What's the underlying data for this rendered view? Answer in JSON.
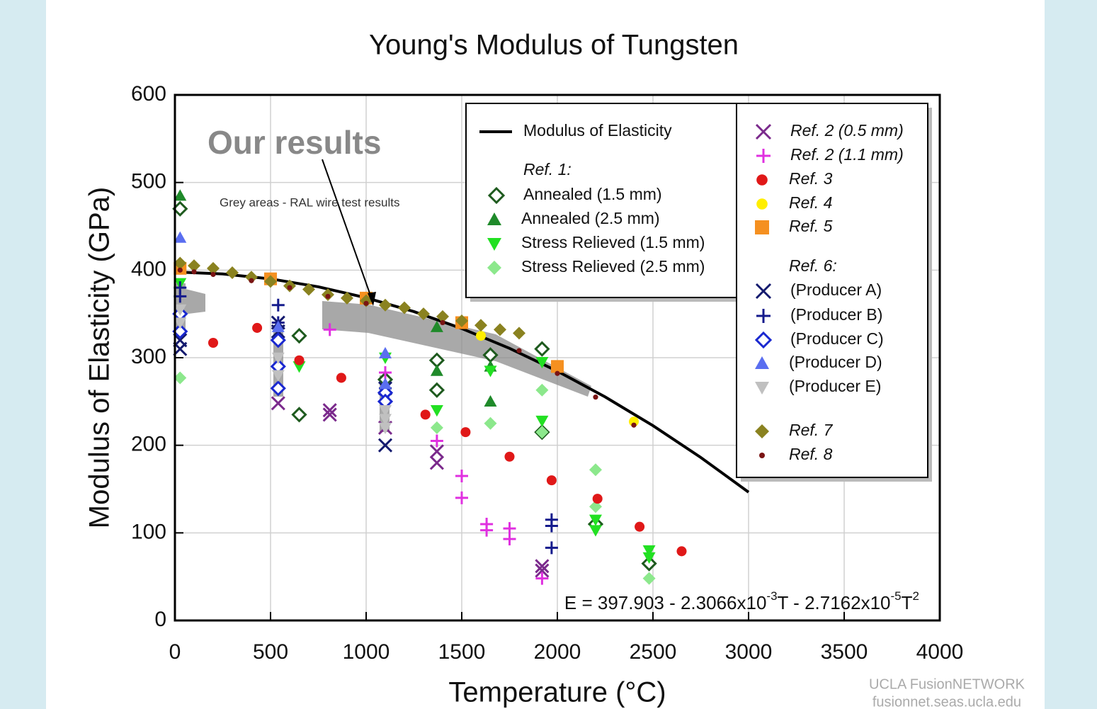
{
  "chart_data": {
    "type": "scatter",
    "title": "Young's Modulus of Tungsten",
    "xlabel": "Temperature (°C)",
    "ylabel": "Modulus of Elasticity (GPa)",
    "xlim": [
      0,
      4000
    ],
    "ylim": [
      0,
      600
    ],
    "xticks": [
      0,
      500,
      1000,
      1500,
      2000,
      2500,
      3000,
      3500,
      4000
    ],
    "yticks": [
      0,
      100,
      200,
      300,
      400,
      500,
      600
    ],
    "grid": true,
    "legend_headings": [
      "Ref. 1:",
      "Ref. 6:"
    ],
    "annotations": [
      "Our results",
      "Grey areas - RAL wire test results"
    ],
    "formula": [
      "E = 397.903 - 2.3066x10",
      "-3",
      "T - 2.7162x10",
      "-5",
      "T",
      "2"
    ],
    "credits": [
      "UCLA FusionNETWORK",
      "fusionnet.seas.ucla.edu"
    ],
    "series": [
      {
        "name": "Modulus of Elasticity",
        "marker": "line",
        "color": "#000000",
        "x": [
          0,
          250,
          500,
          750,
          1000,
          1250,
          1500,
          1750,
          2000,
          2250,
          2500,
          2750,
          3000
        ],
        "values": [
          397.9,
          395.6,
          390.0,
          380.9,
          368.4,
          352.6,
          333.3,
          310.7,
          284.6,
          255.2,
          222.4,
          186.1,
          146.5
        ]
      },
      {
        "name": "Annealed (1.5 mm)",
        "marker": "diamond-open",
        "color": "#1e5a1e",
        "x": [
          27,
          650,
          650,
          1100,
          1370,
          1370,
          1650,
          1920,
          1920,
          2200,
          2480
        ],
        "values": [
          470,
          325,
          235,
          275,
          297,
          263,
          303,
          310,
          215,
          110,
          65
        ]
      },
      {
        "name": "Annealed (2.5 mm)",
        "marker": "triangle-up",
        "color": "#1f8a2a",
        "x": [
          27,
          1370,
          1650,
          1650,
          1370
        ],
        "values": [
          485,
          285,
          290,
          250,
          335
        ]
      },
      {
        "name": "Stress Relieved (1.5 mm)",
        "marker": "triangle-down",
        "color": "#22e022",
        "x": [
          27,
          650,
          1100,
          1370,
          1650,
          1920,
          1920,
          2200,
          2200,
          2480,
          2480
        ],
        "values": [
          385,
          290,
          300,
          240,
          285,
          295,
          228,
          115,
          103,
          80,
          72
        ]
      },
      {
        "name": "Stress Relieved (2.5 mm)",
        "marker": "diamond",
        "color": "#8ce88c",
        "x": [
          27,
          1370,
          1650,
          1920,
          1920,
          2200,
          2200,
          2480
        ],
        "values": [
          277,
          220,
          225,
          263,
          215,
          172,
          130,
          48
        ]
      },
      {
        "name": "Ref. 2 (0.5 mm)",
        "marker": "x",
        "color": "#7b2a8c",
        "x": [
          540,
          810,
          810,
          1100,
          1370,
          1370,
          1920,
          1920
        ],
        "values": [
          248,
          240,
          235,
          220,
          193,
          180,
          62,
          57
        ]
      },
      {
        "name": "Ref. 2 (1.1 mm)",
        "marker": "plus",
        "color": "#e030e0",
        "x": [
          810,
          1100,
          1370,
          1500,
          1500,
          1630,
          1630,
          1750,
          1750,
          1920
        ],
        "values": [
          332,
          283,
          205,
          165,
          140,
          110,
          103,
          105,
          93,
          48
        ]
      },
      {
        "name": "Ref. 3",
        "marker": "circle",
        "color": "#e01818",
        "x": [
          200,
          430,
          650,
          870,
          1310,
          1520,
          1750,
          1970,
          2210,
          2430,
          2650
        ],
        "values": [
          317,
          334,
          297,
          277,
          235,
          215,
          187,
          160,
          139,
          107,
          79
        ]
      },
      {
        "name": "Ref. 4",
        "marker": "circle",
        "color": "#ffee00",
        "x": [
          27,
          1600,
          2400
        ],
        "values": [
          405,
          325,
          227
        ]
      },
      {
        "name": "Ref. 5",
        "marker": "square",
        "color": "#f59020",
        "x": [
          27,
          500,
          1000,
          1500,
          2000
        ],
        "values": [
          402,
          390,
          368,
          340,
          290
        ]
      },
      {
        "name": "(Producer A)",
        "marker": "x",
        "color": "#141a6e",
        "x": [
          27,
          27,
          540,
          540,
          1100,
          1100
        ],
        "values": [
          310,
          320,
          340,
          330,
          200,
          265
        ]
      },
      {
        "name": "(Producer B)",
        "marker": "plus",
        "color": "#141a8c",
        "x": [
          27,
          27,
          540,
          540,
          1970,
          1970,
          1970,
          1100
        ],
        "values": [
          380,
          370,
          360,
          340,
          115,
          108,
          83,
          265
        ]
      },
      {
        "name": "(Producer C)",
        "marker": "diamond-open",
        "color": "#1a28d0",
        "x": [
          27,
          27,
          540,
          540,
          540,
          1100,
          1100
        ],
        "values": [
          350,
          330,
          320,
          290,
          265,
          260,
          250
        ]
      },
      {
        "name": "(Producer D)",
        "marker": "triangle-up",
        "color": "#5a6ef0",
        "x": [
          27,
          540,
          1100,
          1100
        ],
        "values": [
          437,
          335,
          305,
          270
        ]
      },
      {
        "name": "(Producer E)",
        "marker": "triangle-down",
        "color": "#c0c0c0",
        "x": [
          27,
          27,
          540,
          540,
          1100,
          1100,
          1100
        ],
        "values": [
          355,
          340,
          300,
          280,
          240,
          230,
          220
        ]
      },
      {
        "name": "Ref. 7",
        "marker": "diamond",
        "color": "#8a8220",
        "x": [
          27,
          100,
          200,
          300,
          400,
          500,
          600,
          700,
          800,
          900,
          1000,
          1100,
          1200,
          1300,
          1400,
          1500,
          1600,
          1700,
          1800
        ],
        "values": [
          408,
          405,
          402,
          397,
          392,
          387,
          382,
          378,
          372,
          368,
          365,
          360,
          357,
          350,
          347,
          342,
          337,
          332,
          328
        ]
      },
      {
        "name": "Ref. 8",
        "marker": "dot",
        "color": "#7a1414",
        "x": [
          27,
          100,
          200,
          400,
          600,
          800,
          1000,
          1400,
          1800,
          2000,
          2200,
          2400
        ],
        "values": [
          400,
          398,
          395,
          388,
          380,
          370,
          362,
          340,
          308,
          282,
          255,
          223
        ]
      }
    ]
  }
}
